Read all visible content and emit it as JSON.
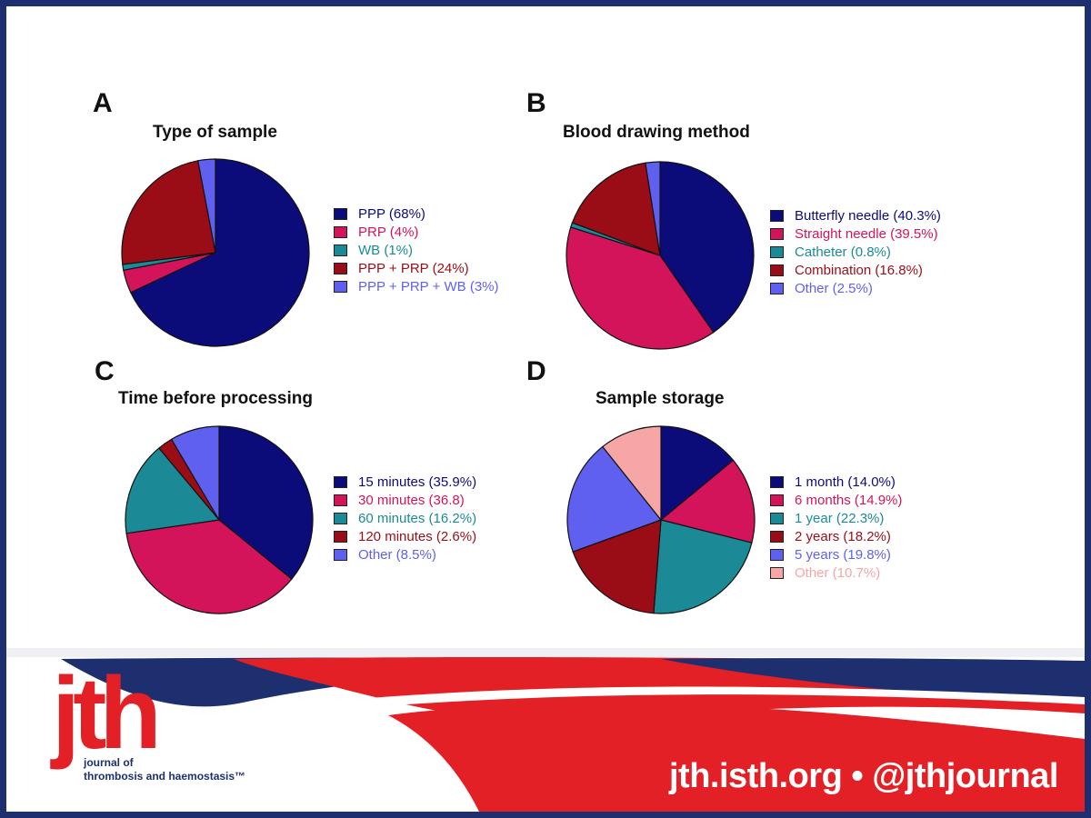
{
  "chart_data": [
    {
      "type": "pie",
      "panel_label": "A",
      "title": "Type of sample",
      "series": [
        {
          "label": "PPP (68%)",
          "value": 68,
          "color": "#0b0b7a"
        },
        {
          "label": "PRP (4%)",
          "value": 4,
          "color": "#d4145a"
        },
        {
          "label": "WB (1%)",
          "value": 1,
          "color": "#1b8a96"
        },
        {
          "label": "PPP + PRP (24%)",
          "value": 24,
          "color": "#9b0d16"
        },
        {
          "label": "PPP + PRP + WB (3%)",
          "value": 3,
          "color": "#6060f0"
        }
      ]
    },
    {
      "type": "pie",
      "panel_label": "B",
      "title": "Blood drawing method",
      "series": [
        {
          "label": "Butterfly needle (40.3%)",
          "value": 40.3,
          "color": "#0b0b7a"
        },
        {
          "label": "Straight needle (39.5%)",
          "value": 39.5,
          "color": "#d4145a"
        },
        {
          "label": "Catheter (0.8%)",
          "value": 0.8,
          "color": "#1b8a96"
        },
        {
          "label": "Combination (16.8%)",
          "value": 16.8,
          "color": "#9b0d16"
        },
        {
          "label": "Other (2.5%)",
          "value": 2.5,
          "color": "#6060f0"
        }
      ]
    },
    {
      "type": "pie",
      "panel_label": "C",
      "title": "Time before processing",
      "series": [
        {
          "label": "15 minutes (35.9%)",
          "value": 35.9,
          "color": "#0b0b7a"
        },
        {
          "label": "30 minutes (36.8)",
          "value": 36.8,
          "color": "#d4145a"
        },
        {
          "label": "60 minutes (16.2%)",
          "value": 16.2,
          "color": "#1b8a96"
        },
        {
          "label": "120 minutes (2.6%)",
          "value": 2.6,
          "color": "#9b0d16"
        },
        {
          "label": "Other (8.5%)",
          "value": 8.5,
          "color": "#6060f0"
        }
      ]
    },
    {
      "type": "pie",
      "panel_label": "D",
      "title": "Sample storage",
      "series": [
        {
          "label": "1 month (14.0%)",
          "value": 14.0,
          "color": "#0b0b7a"
        },
        {
          "label": "6 months (14.9%)",
          "value": 14.9,
          "color": "#d4145a"
        },
        {
          "label": "1 year (22.3%)",
          "value": 22.3,
          "color": "#1b8a96"
        },
        {
          "label": "2 years (18.2%)",
          "value": 18.2,
          "color": "#9b0d16"
        },
        {
          "label": "5 years (19.8%)",
          "value": 19.8,
          "color": "#6060f0"
        },
        {
          "label": "Other (10.7%)",
          "value": 10.7,
          "color": "#f7a6a6"
        }
      ]
    }
  ],
  "footer": {
    "logo_text": "jth",
    "journal_line1": "journal of",
    "journal_line2": "thrombosis and haemostasis™",
    "site_text": "jth.isth.org • @jthjournal",
    "colors": {
      "navy": "#1d2f6f",
      "red": "#e32026"
    }
  }
}
